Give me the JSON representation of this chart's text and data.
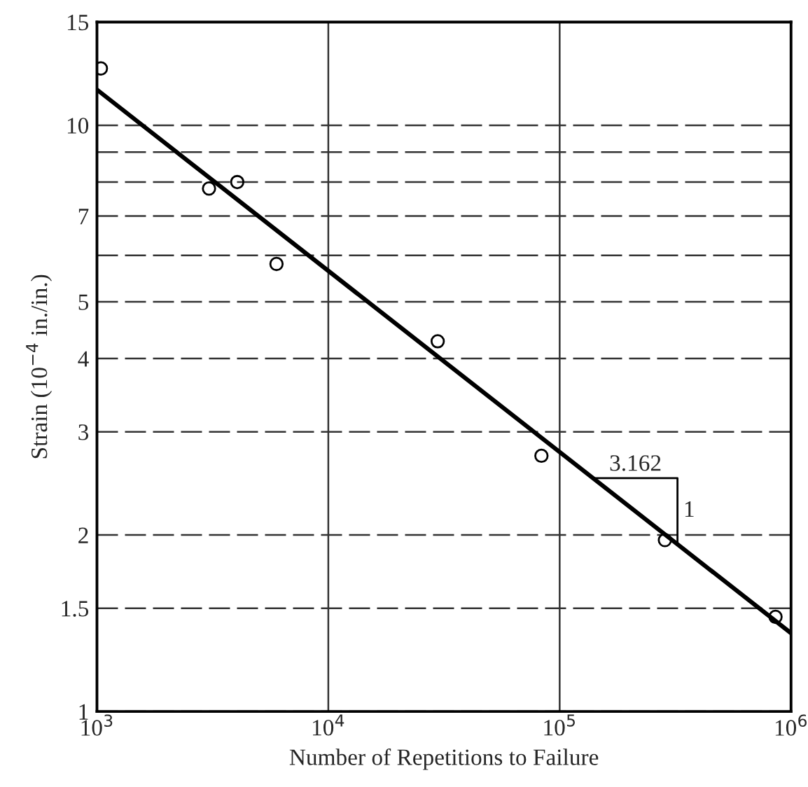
{
  "chart_data": {
    "type": "scatter",
    "xlabel": "Number of Repetitions to Failure",
    "ylabel": "Strain (10$^{−4}$ in./in.)",
    "log": "xy",
    "grid": true,
    "legend": false,
    "xlim": [
      1000,
      1000000
    ],
    "xticks": [
      {
        "value": 1000,
        "label": "10$^{3}$"
      },
      {
        "value": 10000,
        "label": "10$^{4}$"
      },
      {
        "value": 100000,
        "label": "10$^{5}$"
      },
      {
        "value": 1000000,
        "label": "10$^{6}$"
      }
    ],
    "ylim": [
      1,
      15
    ],
    "yticks": [
      1,
      1.5,
      2,
      3,
      4,
      5,
      {
        "value": 6,
        "label": null
      },
      7,
      {
        "value": 8,
        "label": null
      },
      {
        "value": 9,
        "label": null
      },
      10,
      15
    ],
    "series": [
      {
        "color": "#000000",
        "marker": "circle",
        "x": [
          1040,
          3050,
          4040,
          5970,
          29700,
          83400,
          285000,
          857000
        ],
        "values": [
          12.5,
          7.8,
          8.0,
          5.8,
          4.28,
          2.73,
          1.96,
          1.45
        ]
      },
      {
        "type": "line",
        "color": "#000000",
        "marker": "none",
        "line_style": "solid",
        "x": [
          1000,
          1000000
        ],
        "values": [
          11.5,
          1.36
        ]
      }
    ],
    "annotations": [
      {
        "text": "3.162",
        "x": 140000,
        "y": 2.5
      },
      {
        "text": "1",
        "x": 323000,
        "y": 1.93
      }
    ]
  }
}
